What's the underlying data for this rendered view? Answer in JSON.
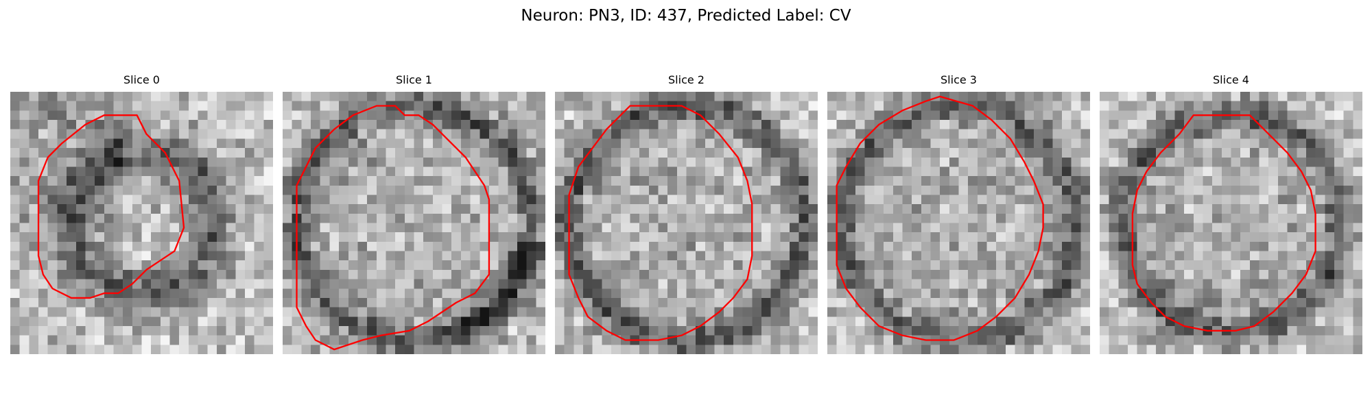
{
  "figure": {
    "title": "Neuron: PN3, ID: 437, Predicted Label: CV"
  },
  "panels": [
    {
      "title": "Slice 0",
      "seed": 11,
      "dark": "blob",
      "ring": [
        [
          14.5,
          4.5
        ],
        [
          16.5,
          6.5
        ],
        [
          18.0,
          9.5
        ],
        [
          18.5,
          14.5
        ],
        [
          17.5,
          17.0
        ],
        [
          16.0,
          18.0
        ],
        [
          14.5,
          19.0
        ],
        [
          13.0,
          20.5
        ],
        [
          11.5,
          21.5
        ],
        [
          10.0,
          21.5
        ],
        [
          8.5,
          22.0
        ],
        [
          6.5,
          22.0
        ],
        [
          4.5,
          21.0
        ],
        [
          3.5,
          19.5
        ],
        [
          3.0,
          17.5
        ],
        [
          3.0,
          9.5
        ],
        [
          4.0,
          7.0
        ],
        [
          5.5,
          5.5
        ],
        [
          8.0,
          3.5
        ],
        [
          10.0,
          2.5
        ],
        [
          13.5,
          2.5
        ]
      ],
      "line_color": "#ff0000"
    },
    {
      "title": "Slice 1",
      "seed": 23,
      "dark": "rim-right",
      "ring": [
        [
          12.0,
          1.5
        ],
        [
          13.0,
          2.5
        ],
        [
          14.5,
          2.5
        ],
        [
          16.0,
          3.5
        ],
        [
          17.5,
          5.0
        ],
        [
          18.5,
          6.0
        ],
        [
          19.5,
          7.0
        ],
        [
          20.5,
          8.5
        ],
        [
          21.5,
          10.0
        ],
        [
          22.0,
          11.5
        ],
        [
          22.0,
          19.5
        ],
        [
          20.5,
          21.5
        ],
        [
          18.5,
          22.5
        ],
        [
          15.5,
          24.5
        ],
        [
          13.5,
          25.5
        ],
        [
          10.5,
          26.0
        ],
        [
          8.5,
          26.5
        ],
        [
          5.5,
          27.5
        ],
        [
          3.5,
          26.5
        ],
        [
          2.5,
          25.0
        ],
        [
          1.5,
          23.0
        ],
        [
          1.5,
          10.0
        ],
        [
          2.5,
          8.0
        ],
        [
          3.5,
          6.0
        ],
        [
          5.5,
          4.0
        ],
        [
          7.5,
          2.5
        ],
        [
          10.0,
          1.5
        ]
      ],
      "line_color": "#ff0000"
    },
    {
      "title": "Slice 2",
      "seed": 37,
      "dark": "rim",
      "ring": [
        [
          8.0,
          1.5
        ],
        [
          13.5,
          1.5
        ],
        [
          15.5,
          2.5
        ],
        [
          17.5,
          4.5
        ],
        [
          19.5,
          7.0
        ],
        [
          20.5,
          9.5
        ],
        [
          21.0,
          12.0
        ],
        [
          21.0,
          17.5
        ],
        [
          20.5,
          20.0
        ],
        [
          19.0,
          22.0
        ],
        [
          17.5,
          23.5
        ],
        [
          15.5,
          25.0
        ],
        [
          13.5,
          26.0
        ],
        [
          11.0,
          26.5
        ],
        [
          7.5,
          26.5
        ],
        [
          5.5,
          25.5
        ],
        [
          3.5,
          24.0
        ],
        [
          2.5,
          22.0
        ],
        [
          1.5,
          19.5
        ],
        [
          1.5,
          11.0
        ],
        [
          2.5,
          8.0
        ],
        [
          4.0,
          6.0
        ],
        [
          5.5,
          4.0
        ],
        [
          7.0,
          2.5
        ]
      ],
      "line_color": "#ff0000"
    },
    {
      "title": "Slice 3",
      "seed": 53,
      "dark": "rim",
      "ring": [
        [
          12.0,
          0.5
        ],
        [
          15.5,
          1.5
        ],
        [
          17.5,
          3.0
        ],
        [
          19.5,
          5.0
        ],
        [
          21.0,
          7.5
        ],
        [
          22.0,
          9.5
        ],
        [
          23.0,
          12.0
        ],
        [
          23.0,
          14.5
        ],
        [
          22.5,
          17.0
        ],
        [
          21.5,
          19.5
        ],
        [
          20.0,
          22.0
        ],
        [
          18.0,
          24.0
        ],
        [
          16.0,
          25.5
        ],
        [
          13.5,
          26.5
        ],
        [
          10.5,
          26.5
        ],
        [
          8.0,
          26.0
        ],
        [
          5.5,
          25.0
        ],
        [
          3.5,
          23.0
        ],
        [
          2.0,
          21.0
        ],
        [
          1.0,
          18.5
        ],
        [
          1.0,
          10.0
        ],
        [
          2.0,
          8.0
        ],
        [
          3.5,
          5.5
        ],
        [
          5.5,
          3.5
        ],
        [
          8.0,
          2.0
        ],
        [
          10.5,
          1.0
        ]
      ],
      "line_color": "#ff0000"
    },
    {
      "title": "Slice 4",
      "seed": 71,
      "dark": "ring",
      "ring": [
        [
          10.0,
          2.5
        ],
        [
          16.0,
          2.5
        ],
        [
          18.0,
          4.5
        ],
        [
          20.0,
          6.5
        ],
        [
          21.5,
          8.5
        ],
        [
          22.5,
          10.5
        ],
        [
          23.0,
          13.0
        ],
        [
          23.0,
          17.0
        ],
        [
          22.0,
          19.5
        ],
        [
          20.5,
          21.5
        ],
        [
          18.5,
          23.5
        ],
        [
          16.5,
          25.0
        ],
        [
          14.5,
          25.5
        ],
        [
          11.5,
          25.5
        ],
        [
          9.0,
          25.0
        ],
        [
          7.0,
          24.0
        ],
        [
          5.5,
          22.5
        ],
        [
          4.0,
          20.5
        ],
        [
          3.5,
          18.5
        ],
        [
          3.5,
          13.0
        ],
        [
          4.0,
          10.5
        ],
        [
          5.0,
          8.5
        ],
        [
          6.5,
          6.5
        ],
        [
          8.5,
          4.5
        ]
      ],
      "line_color": "#ff0000"
    }
  ]
}
